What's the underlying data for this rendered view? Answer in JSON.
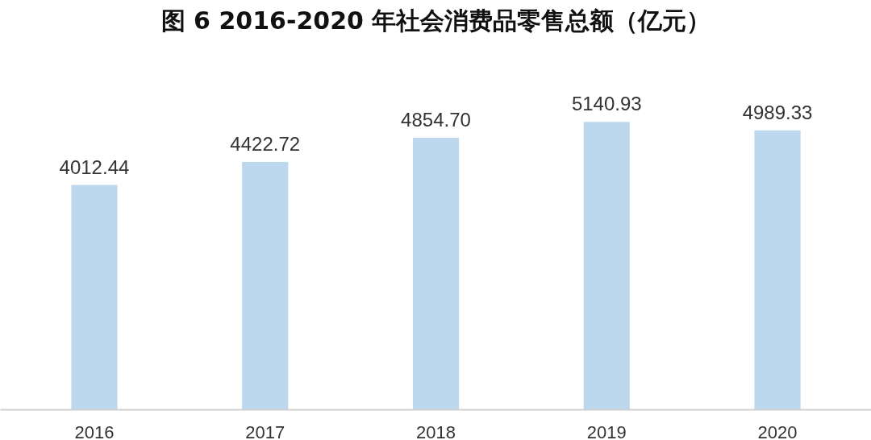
{
  "chart_data": {
    "type": "bar",
    "title": "图 6 2016-2020 年社会消费品零售总额（亿元）",
    "categories": [
      "2016",
      "2017",
      "2018",
      "2019",
      "2020"
    ],
    "values": [
      4012.44,
      4422.72,
      4854.7,
      5140.93,
      4989.33
    ],
    "value_labels": [
      "4012.44",
      "4422.72",
      "4854.70",
      "5140.93",
      "4989.33"
    ],
    "color": "#bdd7ee",
    "grid": false
  }
}
